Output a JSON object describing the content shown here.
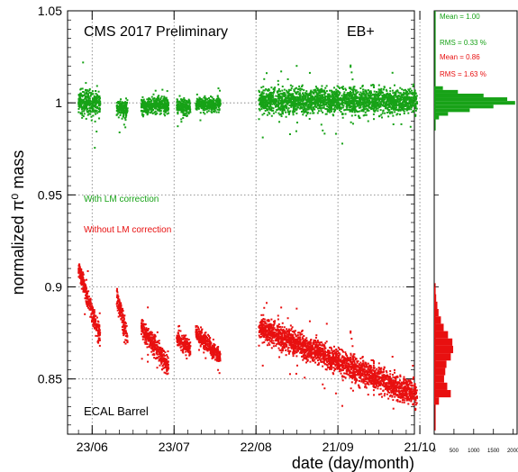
{
  "chart_data": [
    {
      "type": "scatter",
      "title": "CMS 2017 Preliminary",
      "region_label": "EB+",
      "corner_label": "ECAL Barrel",
      "xlabel": "date (day/month)",
      "ylabel": "normalized π⁰ mass",
      "ylim": [
        0.82,
        1.05
      ],
      "xlim": [
        0,
        127
      ],
      "x_unit": "days from 2017-06-14",
      "x_tick_labels": [
        {
          "day": 9,
          "label": "23/06"
        },
        {
          "day": 39,
          "label": "23/07"
        },
        {
          "day": 69,
          "label": "22/08"
        },
        {
          "day": 99,
          "label": "21/09"
        },
        {
          "day": 129,
          "label": "21/10"
        }
      ],
      "y_ticks": [
        0.85,
        0.9,
        0.95,
        1.0,
        1.05
      ],
      "y_tick_labels": [
        "0.85",
        "0.9",
        "0.95",
        "1",
        "1.05"
      ],
      "grid": true,
      "series": [
        {
          "name": "With LM correction",
          "color": "#17a217",
          "segments": [
            {
              "x_start": 4,
              "x_end": 12,
              "y_start": 1.0,
              "y_end": 1.0,
              "spread": 0.006
            },
            {
              "x_start": 18,
              "x_end": 22,
              "y_start": 0.997,
              "y_end": 0.997,
              "spread": 0.004
            },
            {
              "x_start": 27,
              "x_end": 37,
              "y_start": 0.998,
              "y_end": 0.999,
              "spread": 0.004
            },
            {
              "x_start": 40,
              "x_end": 45,
              "y_start": 0.998,
              "y_end": 0.998,
              "spread": 0.004
            },
            {
              "x_start": 47,
              "x_end": 56,
              "y_start": 0.999,
              "y_end": 0.999,
              "spread": 0.003
            },
            {
              "x_start": 70,
              "x_end": 128,
              "y_start": 1.001,
              "y_end": 1.001,
              "spread": 0.006
            }
          ]
        },
        {
          "name": "Without LM correction",
          "color": "#e81010",
          "segments": [
            {
              "x_start": 4,
              "x_end": 12,
              "y_start": 0.91,
              "y_end": 0.872,
              "spread": 0.005
            },
            {
              "x_start": 18,
              "x_end": 22,
              "y_start": 0.895,
              "y_end": 0.872,
              "spread": 0.005
            },
            {
              "x_start": 27,
              "x_end": 37,
              "y_start": 0.878,
              "y_end": 0.857,
              "spread": 0.005
            },
            {
              "x_start": 40,
              "x_end": 45,
              "y_start": 0.872,
              "y_end": 0.866,
              "spread": 0.004
            },
            {
              "x_start": 47,
              "x_end": 56,
              "y_start": 0.875,
              "y_end": 0.862,
              "spread": 0.004
            },
            {
              "x_start": 70,
              "x_end": 128,
              "y_start": 0.878,
              "y_end": 0.841,
              "spread": 0.006
            }
          ]
        }
      ],
      "annotations": [
        "With LM correction",
        "Without LM correction"
      ]
    },
    {
      "type": "bar",
      "orientation": "horizontal",
      "x_ticks": [
        0,
        500,
        1000,
        1500,
        2000
      ],
      "x_tick_labels": [
        "0",
        "500",
        "1000",
        "1500",
        "2000"
      ],
      "ylim": [
        0.82,
        1.05
      ],
      "series": [
        {
          "name": "With LM correction",
          "color": "#17a217",
          "bins": [
            {
              "y": 0.992,
              "count": 120
            },
            {
              "y": 0.994,
              "count": 350
            },
            {
              "y": 0.996,
              "count": 900
            },
            {
              "y": 0.998,
              "count": 1500
            },
            {
              "y": 1.0,
              "count": 2050
            },
            {
              "y": 1.002,
              "count": 1850
            },
            {
              "y": 1.004,
              "count": 1250
            },
            {
              "y": 1.006,
              "count": 600
            },
            {
              "y": 1.008,
              "count": 220
            }
          ]
        },
        {
          "name": "Without LM correction",
          "color": "#e81010",
          "bins": [
            {
              "y": 0.838,
              "count": 120
            },
            {
              "y": 0.842,
              "count": 420
            },
            {
              "y": 0.846,
              "count": 330
            },
            {
              "y": 0.85,
              "count": 250
            },
            {
              "y": 0.854,
              "count": 280
            },
            {
              "y": 0.858,
              "count": 310
            },
            {
              "y": 0.862,
              "count": 420
            },
            {
              "y": 0.866,
              "count": 480
            },
            {
              "y": 0.87,
              "count": 460
            },
            {
              "y": 0.874,
              "count": 350
            },
            {
              "y": 0.878,
              "count": 240
            },
            {
              "y": 0.882,
              "count": 170
            },
            {
              "y": 0.886,
              "count": 110
            },
            {
              "y": 0.89,
              "count": 80
            },
            {
              "y": 0.894,
              "count": 50
            },
            {
              "y": 0.898,
              "count": 25
            }
          ]
        }
      ],
      "stats": [
        {
          "series": "With LM correction",
          "mean_label": "Mean = 1.00",
          "rms_label": "RMS = 0.33 %"
        },
        {
          "series": "Without LM correction",
          "mean_label": "Mean = 0.86",
          "rms_label": "RMS = 1.63 %"
        }
      ]
    }
  ]
}
